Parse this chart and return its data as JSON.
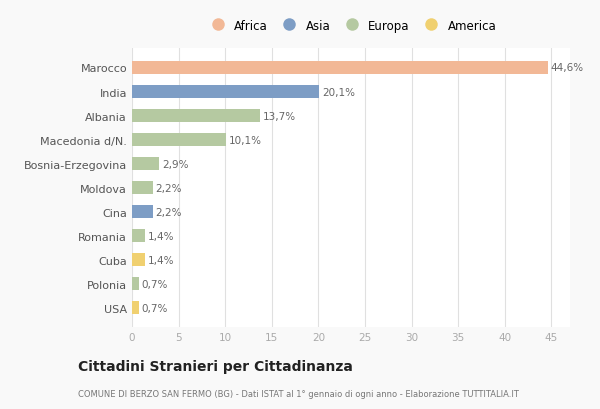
{
  "categories": [
    "Marocco",
    "India",
    "Albania",
    "Macedonia d/N.",
    "Bosnia-Erzegovina",
    "Moldova",
    "Cina",
    "Romania",
    "Cuba",
    "Polonia",
    "USA"
  ],
  "values": [
    44.6,
    20.1,
    13.7,
    10.1,
    2.9,
    2.2,
    2.2,
    1.4,
    1.4,
    0.7,
    0.7
  ],
  "labels": [
    "44,6%",
    "20,1%",
    "13,7%",
    "10,1%",
    "2,9%",
    "2,2%",
    "2,2%",
    "1,4%",
    "1,4%",
    "0,7%",
    "0,7%"
  ],
  "colors": [
    "#F2B896",
    "#7D9DC5",
    "#B5C9A1",
    "#B5C9A1",
    "#B5C9A1",
    "#B5C9A1",
    "#7D9DC5",
    "#B5C9A1",
    "#F0D070",
    "#B5C9A1",
    "#F0D070"
  ],
  "legend_labels": [
    "Africa",
    "Asia",
    "Europa",
    "America"
  ],
  "legend_colors": [
    "#F2B896",
    "#7D9DC5",
    "#B5C9A1",
    "#F0D070"
  ],
  "xlim": [
    0,
    47
  ],
  "xticks": [
    0,
    5,
    10,
    15,
    20,
    25,
    30,
    35,
    40,
    45
  ],
  "title": "Cittadini Stranieri per Cittadinanza",
  "subtitle": "COMUNE DI BERZO SAN FERMO (BG) - Dati ISTAT al 1° gennaio di ogni anno - Elaborazione TUTTITALIA.IT",
  "bg_color": "#f9f9f9",
  "bar_bg_color": "#ffffff",
  "grid_color": "#e0e0e0"
}
